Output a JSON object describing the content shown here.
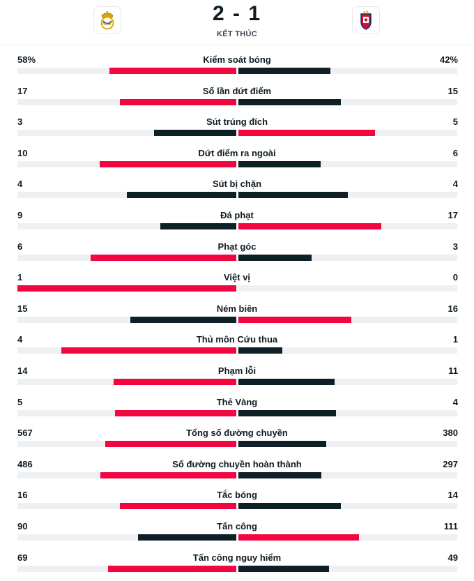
{
  "match": {
    "score": "2 - 1",
    "status": "KẾT THÚC",
    "home_crest": "real-madrid-crest-icon",
    "away_crest": "osasuna-crest-icon"
  },
  "colors": {
    "leader": "#f2063f",
    "other": "#0e1f27",
    "track": "#eef0f2"
  },
  "stats": [
    {
      "label": "Kiểm soát bóng",
      "home": "58%",
      "away": "42%",
      "home_value": 58,
      "away_value": 42
    },
    {
      "label": "Số lần dứt điểm",
      "home": "17",
      "away": "15",
      "home_value": 17,
      "away_value": 15
    },
    {
      "label": "Sút trúng đích",
      "home": "3",
      "away": "5",
      "home_value": 3,
      "away_value": 5
    },
    {
      "label": "Dứt điểm ra ngoài",
      "home": "10",
      "away": "6",
      "home_value": 10,
      "away_value": 6
    },
    {
      "label": "Sút bị chặn",
      "home": "4",
      "away": "4",
      "home_value": 4,
      "away_value": 4
    },
    {
      "label": "Đá phạt",
      "home": "9",
      "away": "17",
      "home_value": 9,
      "away_value": 17
    },
    {
      "label": "Phạt góc",
      "home": "6",
      "away": "3",
      "home_value": 6,
      "away_value": 3
    },
    {
      "label": "Việt vị",
      "home": "1",
      "away": "0",
      "home_value": 1,
      "away_value": 0
    },
    {
      "label": "Ném biên",
      "home": "15",
      "away": "16",
      "home_value": 15,
      "away_value": 16
    },
    {
      "label": "Thủ môn Cứu thua",
      "home": "4",
      "away": "1",
      "home_value": 4,
      "away_value": 1
    },
    {
      "label": "Phạm lỗi",
      "home": "14",
      "away": "11",
      "home_value": 14,
      "away_value": 11
    },
    {
      "label": "Thẻ Vàng",
      "home": "5",
      "away": "4",
      "home_value": 5,
      "away_value": 4
    },
    {
      "label": "Tổng số đường chuyền",
      "home": "567",
      "away": "380",
      "home_value": 567,
      "away_value": 380
    },
    {
      "label": "Số đường chuyền hoàn thành",
      "home": "486",
      "away": "297",
      "home_value": 486,
      "away_value": 297
    },
    {
      "label": "Tắc bóng",
      "home": "16",
      "away": "14",
      "home_value": 16,
      "away_value": 14
    },
    {
      "label": "Tấn công",
      "home": "90",
      "away": "111",
      "home_value": 90,
      "away_value": 111
    },
    {
      "label": "Tấn công nguy hiểm",
      "home": "69",
      "away": "49",
      "home_value": 69,
      "away_value": 49
    }
  ]
}
